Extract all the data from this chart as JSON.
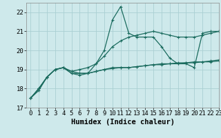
{
  "xlabel": "Humidex (Indice chaleur)",
  "bg_color": "#cee9eb",
  "grid_color": "#aacfd2",
  "line_color": "#1a6b5e",
  "x_values": [
    0,
    1,
    2,
    3,
    4,
    5,
    6,
    7,
    8,
    9,
    10,
    11,
    12,
    13,
    14,
    15,
    16,
    17,
    18,
    19,
    20,
    21,
    22,
    23
  ],
  "series": [
    [
      17.5,
      17.9,
      18.6,
      19.0,
      19.1,
      18.8,
      18.7,
      18.8,
      19.3,
      20.0,
      21.6,
      22.3,
      20.9,
      20.7,
      20.7,
      20.7,
      20.2,
      19.6,
      19.3,
      19.3,
      19.1,
      20.9,
      21.0,
      21.0
    ],
    [
      17.5,
      18.0,
      18.6,
      19.0,
      19.1,
      18.9,
      19.0,
      19.1,
      19.3,
      19.7,
      20.2,
      20.5,
      20.7,
      20.8,
      20.9,
      21.0,
      20.9,
      20.8,
      20.7,
      20.7,
      20.7,
      20.8,
      20.9,
      21.0
    ],
    [
      17.5,
      18.0,
      18.6,
      19.0,
      19.1,
      18.8,
      18.8,
      18.8,
      18.9,
      19.0,
      19.1,
      19.1,
      19.1,
      19.15,
      19.2,
      19.25,
      19.25,
      19.3,
      19.3,
      19.35,
      19.35,
      19.4,
      19.4,
      19.45
    ],
    [
      17.5,
      18.0,
      18.6,
      19.0,
      19.1,
      18.9,
      18.8,
      18.8,
      18.9,
      19.0,
      19.05,
      19.1,
      19.1,
      19.15,
      19.2,
      19.25,
      19.3,
      19.3,
      19.35,
      19.35,
      19.4,
      19.4,
      19.45,
      19.5
    ]
  ],
  "ylim": [
    17,
    22.5
  ],
  "xlim": [
    -0.5,
    23
  ],
  "yticks": [
    17,
    18,
    19,
    20,
    21,
    22
  ],
  "xticks": [
    0,
    1,
    2,
    3,
    4,
    5,
    6,
    7,
    8,
    9,
    10,
    11,
    12,
    13,
    14,
    15,
    16,
    17,
    18,
    19,
    20,
    21,
    22,
    23
  ],
  "tick_fontsize": 6.5,
  "label_fontsize": 7.5
}
